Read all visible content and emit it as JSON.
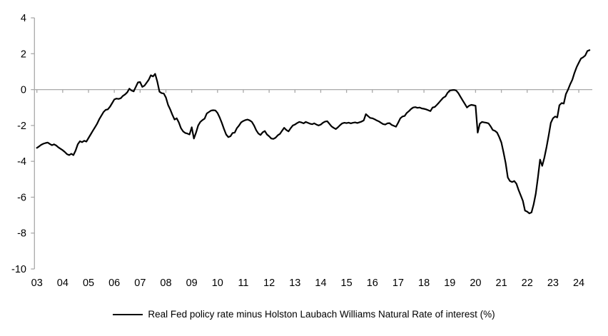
{
  "chart": {
    "background": "#ffffff",
    "line_color": "#000000",
    "axis_color": "#a9a9a9",
    "label_color": "#000000",
    "legend": {
      "series_label": "Real Fed policy rate minus Holston Laubach Williams Natural Rate of interest (%)"
    }
  },
  "chart_data": {
    "type": "line",
    "title": "",
    "xlabel": "",
    "ylabel": "",
    "legend_position": "bottom",
    "grid": false,
    "zero_line": true,
    "x_axis": {
      "tick_labels": [
        "03",
        "04",
        "05",
        "06",
        "07",
        "08",
        "09",
        "10",
        "11",
        "12",
        "13",
        "14",
        "15",
        "16",
        "17",
        "18",
        "19",
        "20",
        "21",
        "22",
        "23",
        "24"
      ],
      "range_years": [
        2003.0,
        2024.6
      ]
    },
    "y_axis": {
      "ticks": [
        4,
        2,
        0,
        -2,
        -4,
        -6,
        -8,
        -10
      ],
      "range": [
        -10,
        4
      ]
    },
    "series": [
      {
        "name": "Real Fed policy rate minus Holston Laubach Williams Natural Rate of interest (%)",
        "color": "#000000",
        "start": "2003-01",
        "frequency": "monthly",
        "values": [
          -3.25,
          -3.17,
          -3.08,
          -3.02,
          -2.98,
          -2.95,
          -3.03,
          -3.1,
          -3.05,
          -3.12,
          -3.22,
          -3.3,
          -3.38,
          -3.48,
          -3.6,
          -3.65,
          -3.58,
          -3.65,
          -3.4,
          -3.05,
          -2.88,
          -2.93,
          -2.85,
          -2.9,
          -2.7,
          -2.5,
          -2.3,
          -2.1,
          -1.9,
          -1.65,
          -1.45,
          -1.25,
          -1.13,
          -1.1,
          -0.95,
          -0.75,
          -0.55,
          -0.5,
          -0.52,
          -0.48,
          -0.35,
          -0.27,
          -0.15,
          0.05,
          -0.05,
          -0.1,
          0.15,
          0.4,
          0.42,
          0.15,
          0.22,
          0.38,
          0.55,
          0.8,
          0.73,
          0.88,
          0.45,
          -0.12,
          -0.2,
          -0.22,
          -0.44,
          -0.85,
          -1.1,
          -1.4,
          -1.67,
          -1.6,
          -1.83,
          -2.15,
          -2.33,
          -2.42,
          -2.45,
          -2.5,
          -2.1,
          -2.73,
          -2.4,
          -2.0,
          -1.8,
          -1.7,
          -1.62,
          -1.33,
          -1.25,
          -1.17,
          -1.15,
          -1.16,
          -1.3,
          -1.55,
          -1.85,
          -2.2,
          -2.5,
          -2.65,
          -2.6,
          -2.42,
          -2.4,
          -2.15,
          -2.0,
          -1.82,
          -1.75,
          -1.7,
          -1.67,
          -1.72,
          -1.8,
          -2.0,
          -2.27,
          -2.45,
          -2.53,
          -2.38,
          -2.31,
          -2.5,
          -2.6,
          -2.73,
          -2.75,
          -2.68,
          -2.55,
          -2.47,
          -2.3,
          -2.13,
          -2.25,
          -2.33,
          -2.15,
          -2.0,
          -1.95,
          -1.87,
          -1.8,
          -1.83,
          -1.88,
          -1.8,
          -1.85,
          -1.9,
          -1.93,
          -1.88,
          -1.95,
          -2.0,
          -1.95,
          -1.85,
          -1.78,
          -1.76,
          -1.9,
          -2.05,
          -2.13,
          -2.2,
          -2.1,
          -1.98,
          -1.88,
          -1.85,
          -1.87,
          -1.84,
          -1.88,
          -1.85,
          -1.83,
          -1.86,
          -1.82,
          -1.78,
          -1.72,
          -1.37,
          -1.48,
          -1.58,
          -1.6,
          -1.65,
          -1.72,
          -1.77,
          -1.85,
          -1.92,
          -1.95,
          -1.88,
          -1.87,
          -1.97,
          -2.02,
          -2.07,
          -1.85,
          -1.6,
          -1.5,
          -1.47,
          -1.3,
          -1.2,
          -1.08,
          -1.0,
          -0.98,
          -1.02,
          -1.0,
          -1.05,
          -1.07,
          -1.1,
          -1.15,
          -1.2,
          -1.0,
          -0.97,
          -0.85,
          -0.72,
          -0.58,
          -0.45,
          -0.38,
          -0.18,
          -0.05,
          -0.03,
          -0.02,
          -0.05,
          -0.2,
          -0.4,
          -0.6,
          -0.8,
          -1.0,
          -0.9,
          -0.85,
          -0.87,
          -0.9,
          -2.4,
          -1.9,
          -1.8,
          -1.83,
          -1.85,
          -1.88,
          -2.05,
          -2.25,
          -2.3,
          -2.4,
          -2.65,
          -2.95,
          -3.5,
          -4.1,
          -4.9,
          -5.1,
          -5.15,
          -5.1,
          -5.25,
          -5.6,
          -5.9,
          -6.2,
          -6.75,
          -6.8,
          -6.9,
          -6.85,
          -6.4,
          -5.8,
          -4.9,
          -3.9,
          -4.25,
          -3.8,
          -3.2,
          -2.55,
          -1.85,
          -1.6,
          -1.5,
          -1.55,
          -0.87,
          -0.75,
          -0.78,
          -0.25,
          0.0,
          0.3,
          0.55,
          0.93,
          1.25,
          1.5,
          1.73,
          1.8,
          1.9,
          2.15,
          2.2
        ]
      }
    ]
  }
}
